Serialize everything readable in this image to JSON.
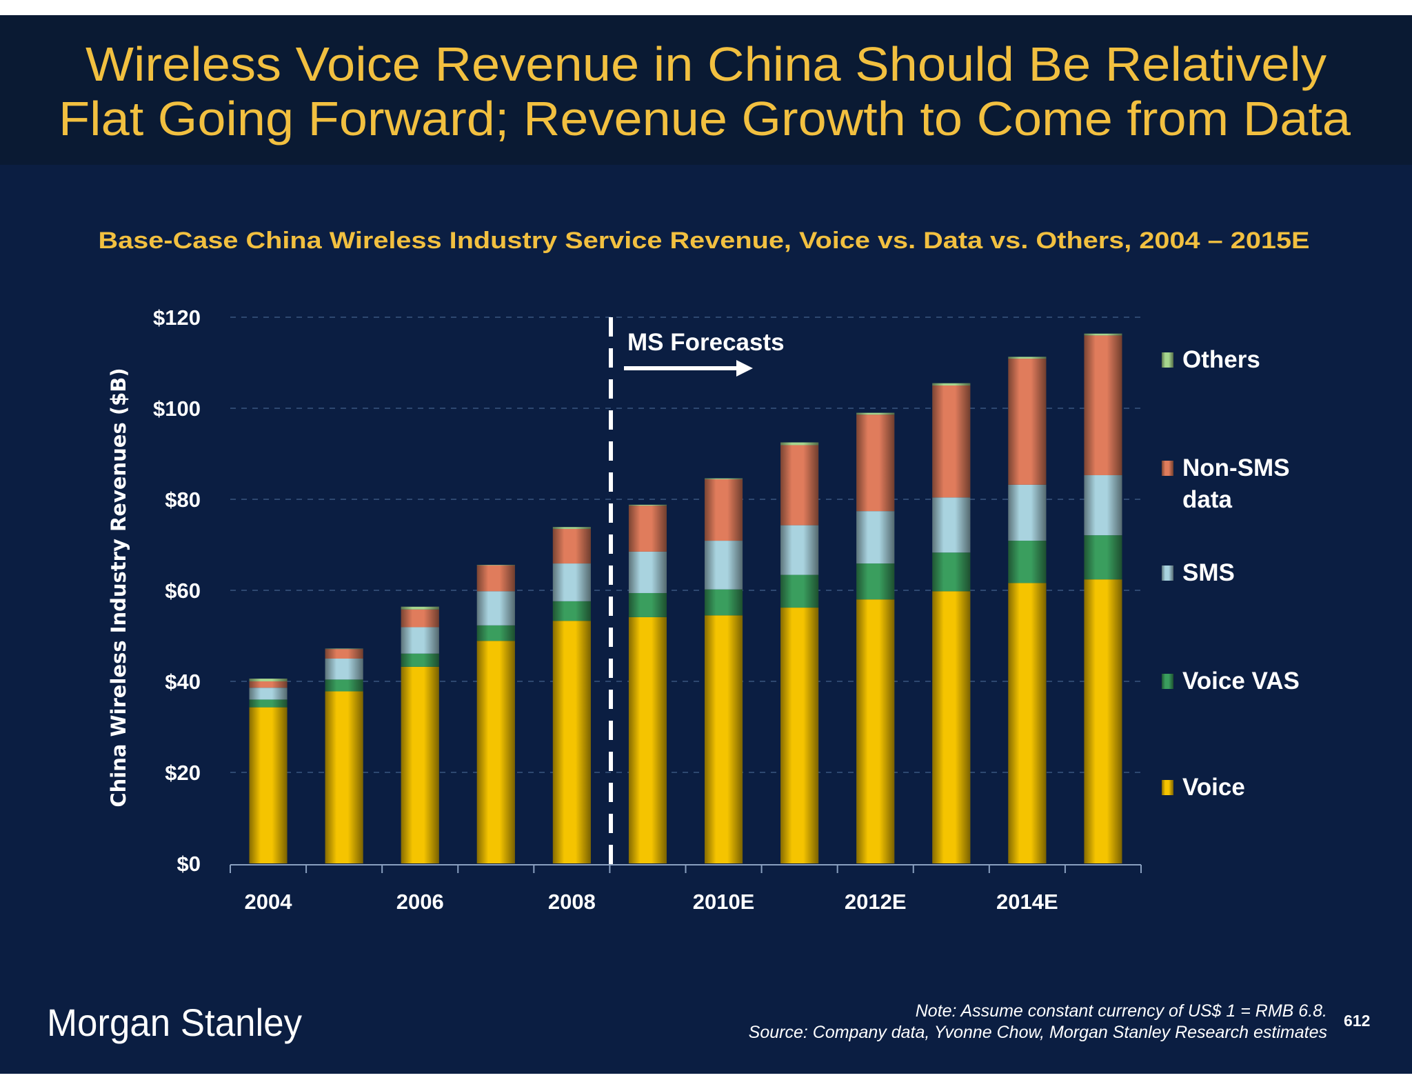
{
  "title": {
    "line1": "Wireless Voice Revenue in China Should Be Relatively",
    "line2": "Flat Going Forward; Revenue Growth to Come from Data"
  },
  "chart_data": {
    "type": "bar",
    "stacked": true,
    "title": "Base-Case China Wireless Industry Service Revenue, Voice vs. Data vs. Others, 2004 – 2015E",
    "xlabel": "",
    "ylabel": "China Wireless Industry Revenues ($B)",
    "ylim": [
      0,
      120
    ],
    "yticks": [
      0,
      20,
      40,
      60,
      80,
      100,
      120
    ],
    "ytick_labels": [
      "$0",
      "$20",
      "$40",
      "$60",
      "$80",
      "$100",
      "$120"
    ],
    "grid": "horizontal dashed",
    "legend_placement": "right",
    "categories": [
      "2004",
      "2005",
      "2006",
      "2007",
      "2008",
      "2009E",
      "2010E",
      "2011E",
      "2012E",
      "2013E",
      "2014E",
      "2015E"
    ],
    "xtick_labels": [
      "2004",
      "",
      "2006",
      "",
      "2008",
      "",
      "2010E",
      "",
      "2012E",
      "",
      "2014E",
      ""
    ],
    "series": [
      {
        "name": "Voice",
        "color": "#f5c400",
        "values": [
          34.3,
          37.8,
          43.2,
          48.9,
          53.3,
          54.1,
          54.5,
          56.2,
          58.0,
          59.8,
          61.6,
          62.4
        ]
      },
      {
        "name": "Voice VAS",
        "color": "#3a9e5e",
        "values": [
          1.7,
          2.6,
          2.9,
          3.4,
          4.3,
          5.3,
          5.7,
          7.2,
          7.9,
          8.5,
          9.3,
          9.7
        ]
      },
      {
        "name": "SMS",
        "color": "#a9d3df",
        "values": [
          2.6,
          4.6,
          5.8,
          7.5,
          8.3,
          9.1,
          10.7,
          10.9,
          11.5,
          12.1,
          12.3,
          13.2
        ]
      },
      {
        "name": "Non-SMS data",
        "color": "#e07c5c",
        "values": [
          1.4,
          2.1,
          3.9,
          5.7,
          7.6,
          10.1,
          13.5,
          17.6,
          21.2,
          24.6,
          27.7,
          30.7
        ]
      },
      {
        "name": "Others",
        "color": "#a6d68e",
        "values": [
          0.6,
          0.1,
          0.6,
          0.1,
          0.4,
          0.2,
          0.2,
          0.6,
          0.4,
          0.5,
          0.4,
          0.4
        ]
      }
    ],
    "legend": [
      "Others",
      "Non-SMS",
      "data",
      "SMS",
      "Voice VAS",
      "Voice"
    ],
    "annotation": "MS Forecasts",
    "forecast_divider_after": "2008"
  },
  "footer": {
    "logo": "Morgan Stanley",
    "note": "Note: Assume constant currency of US$ 1 = RMB 6.8.",
    "source": "Source: Company data, Yvonne Chow, Morgan Stanley Research estimates",
    "page_number": "612"
  },
  "colors": {
    "title_band": "#0a1a33",
    "background": "#0b1e42",
    "accent": "#f2c040"
  }
}
